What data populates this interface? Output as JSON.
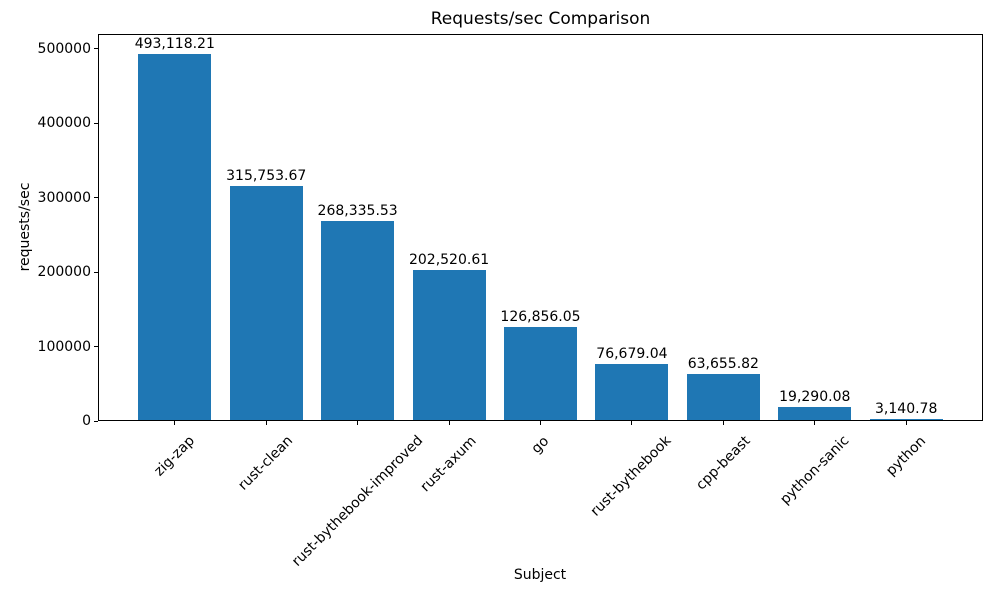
{
  "figure": {
    "background": "#ffffff",
    "text_color": "#000000"
  },
  "chart_data": {
    "type": "bar",
    "title": "Requests/sec Comparison",
    "xlabel": "Subject",
    "ylabel": "requests/sec",
    "categories": [
      "zig-zap",
      "rust-clean",
      "rust-bythebook-improved",
      "rust-axum",
      "go",
      "rust-bythebook",
      "cpp-beast",
      "python-sanic",
      "python"
    ],
    "values": [
      493118.21,
      315753.67,
      268335.53,
      202520.61,
      126856.05,
      76679.04,
      63655.82,
      19290.08,
      3140.78
    ],
    "bar_labels": [
      "493,118.21",
      "315,753.67",
      "268,335.53",
      "202,520.61",
      "126,856.05",
      "76,679.04",
      "63,655.82",
      "19,290.08",
      "3,140.78"
    ],
    "y_tick_values": [
      0,
      100000,
      200000,
      300000,
      400000,
      500000
    ],
    "y_tick_labels": [
      "0",
      "100000",
      "200000",
      "300000",
      "400000",
      "500000"
    ],
    "ylim": [
      0,
      520000
    ],
    "bar_color": "#1f77b4",
    "grid": false,
    "legend": "none",
    "x_tick_rotation_deg": 45
  }
}
